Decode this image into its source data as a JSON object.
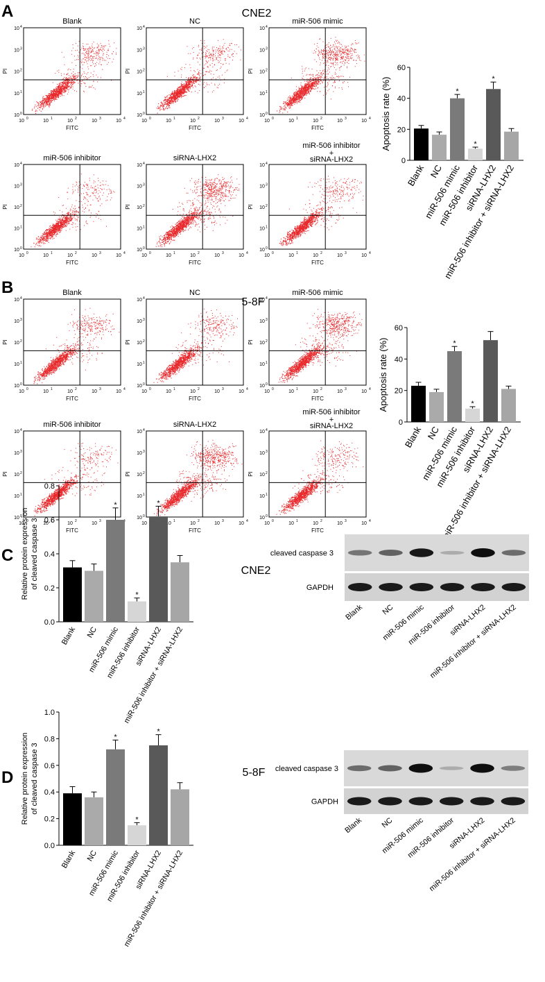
{
  "panels": {
    "a": {
      "letter": "A",
      "title": "CNE2"
    },
    "b": {
      "letter": "B",
      "title": "5-8F"
    },
    "c": {
      "letter": "C",
      "title": "CNE2"
    },
    "d": {
      "letter": "D",
      "title": "5-8F"
    }
  },
  "flow": {
    "x_label": "FITC",
    "y_label": "PI",
    "ticks": [
      "10",
      "10",
      "10",
      "10",
      "10"
    ],
    "tick_exponents": [
      "0",
      "1",
      "2",
      "3",
      "4"
    ],
    "plots": {
      "a": [
        {
          "title": "Blank"
        },
        {
          "title": "NC"
        },
        {
          "title": "miR-506 mimic"
        },
        {
          "title": "miR-506 inhibitor"
        },
        {
          "title": "siRNA-LHX2"
        },
        {
          "title": "miR-506 inhibitor",
          "title2": "+",
          "title3": "siRNA-LHX2"
        }
      ],
      "b": [
        {
          "title": "Blank"
        },
        {
          "title": "NC"
        },
        {
          "title": "miR-506 mimic"
        },
        {
          "title": "miR-506 inhibitor"
        },
        {
          "title": "siRNA-LHX2"
        },
        {
          "title": "miR-506 inhibitor",
          "title2": "+",
          "title3": "siRNA-LHX2"
        }
      ]
    }
  },
  "blot": {
    "band1": "cleaved caspase 3",
    "band2": "GAPDH",
    "c_intensity": [
      0.45,
      0.55,
      0.95,
      0.15,
      1.0,
      0.5
    ],
    "d_intensity": [
      0.5,
      0.55,
      1.0,
      0.15,
      1.0,
      0.4
    ]
  },
  "chart_data": [
    {
      "id": "a",
      "type": "bar",
      "categories": [
        "Blank",
        "NC",
        "miR-506 mimic",
        "miR-506 inhibitor",
        "siRNA-LHX2",
        "miR-506 inhibitor + siRNA-LHX2"
      ],
      "values": [
        20.5,
        16.5,
        40.0,
        7.5,
        46.0,
        18.5
      ],
      "errors": [
        2.0,
        1.8,
        2.5,
        1.0,
        4.5,
        2.0
      ],
      "significant": [
        false,
        false,
        true,
        true,
        true,
        false
      ],
      "colors": [
        "#000000",
        "#aaaaaa",
        "#7a7a7a",
        "#d6d6d6",
        "#595959",
        "#a6a6a6"
      ],
      "ylabel": "Apoptosis rate (%)",
      "ylim": [
        0,
        60
      ],
      "yticks": [
        "0",
        "20",
        "40",
        "60"
      ]
    },
    {
      "id": "b",
      "type": "bar",
      "categories": [
        "Blank",
        "NC",
        "miR-506 mimic",
        "miR-506 inhibitor",
        "siRNA-LHX2",
        "miR-506 inhibitor + siRNA-LHX2"
      ],
      "values": [
        23.0,
        19.0,
        45.0,
        8.5,
        52.0,
        21.0
      ],
      "errors": [
        2.2,
        1.8,
        3.0,
        1.2,
        5.5,
        1.8
      ],
      "significant": [
        false,
        false,
        true,
        true,
        false,
        false
      ],
      "colors": [
        "#000000",
        "#aaaaaa",
        "#7a7a7a",
        "#d6d6d6",
        "#595959",
        "#a6a6a6"
      ],
      "ylabel": "Apoptosis rate (%)",
      "ylim": [
        0,
        60
      ],
      "yticks": [
        "0",
        "20",
        "40",
        "60"
      ]
    },
    {
      "id": "c",
      "type": "bar",
      "categories": [
        "Blank",
        "NC",
        "miR-506 mimic",
        "miR-506 inhibitor",
        "siRNA-LHX2",
        "miR-506 inhibitor + siRNA-LHX2"
      ],
      "values": [
        0.32,
        0.3,
        0.6,
        0.12,
        0.62,
        0.35
      ],
      "errors": [
        0.04,
        0.04,
        0.07,
        0.02,
        0.06,
        0.04
      ],
      "significant": [
        false,
        false,
        true,
        true,
        true,
        false
      ],
      "colors": [
        "#000000",
        "#aaaaaa",
        "#7a7a7a",
        "#d6d6d6",
        "#595959",
        "#a6a6a6"
      ],
      "ylabel": "Relative protein expression",
      "ylabel2": "of cleaved caspase 3",
      "ylim": [
        0,
        0.8
      ],
      "yticks": [
        "0.0",
        "0.2",
        "0.4",
        "0.6",
        "0.8"
      ]
    },
    {
      "id": "d",
      "type": "bar",
      "categories": [
        "Blank",
        "NC",
        "miR-506 mimic",
        "miR-506 inhibitor",
        "siRNA-LHX2",
        "miR-506 inhibitor + siRNA-LHX2"
      ],
      "values": [
        0.39,
        0.36,
        0.72,
        0.15,
        0.75,
        0.42
      ],
      "errors": [
        0.05,
        0.04,
        0.07,
        0.02,
        0.08,
        0.05
      ],
      "significant": [
        false,
        false,
        true,
        true,
        true,
        false
      ],
      "colors": [
        "#000000",
        "#aaaaaa",
        "#7a7a7a",
        "#d6d6d6",
        "#595959",
        "#a6a6a6"
      ],
      "ylabel": "Relative protein expression",
      "ylabel2": "of cleaved caspase 3",
      "ylim": [
        0,
        1.0
      ],
      "yticks": [
        "0.0",
        "0.2",
        "0.4",
        "0.6",
        "0.8",
        "1.0"
      ]
    }
  ]
}
